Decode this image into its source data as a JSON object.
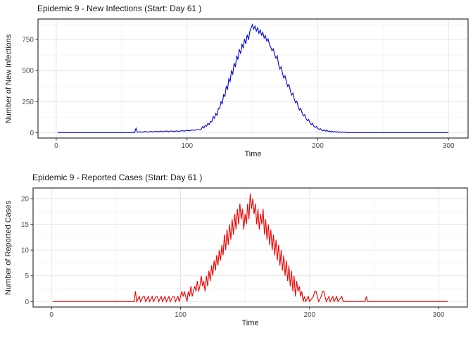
{
  "theme": {
    "background": "#ffffff",
    "panel_border": "#333333",
    "grid_major": "#e6e6e6",
    "grid_minor": "#f2f2f2",
    "tick_mark_color": "#333333",
    "tick_label_color": "#4d4d4d",
    "title_color": "#1a1a1a",
    "blue_series": "#0000de",
    "red_series": "#ee0000"
  },
  "chart_data": [
    {
      "type": "line",
      "title": "Epidemic 9 - New Infections (Start: Day 61 )",
      "xlabel": "Time",
      "ylabel": "Number of New Infections",
      "legend": "none",
      "grid": true,
      "line_color": "#0000de",
      "xlim": [
        1,
        300
      ],
      "ylim": [
        0,
        872
      ],
      "x_ticks": [
        0,
        100,
        200,
        300
      ],
      "x_minor_ticks": [
        50,
        150,
        250
      ],
      "y_ticks": [
        0,
        250,
        500,
        750
      ],
      "y_minor_ticks": [
        125,
        375,
        625,
        875
      ],
      "points": [
        [
          1,
          0
        ],
        [
          58,
          0
        ],
        [
          60,
          1
        ],
        [
          61,
          35
        ],
        [
          62,
          3
        ],
        [
          64,
          7
        ],
        [
          66,
          3
        ],
        [
          68,
          9
        ],
        [
          70,
          4
        ],
        [
          72,
          10
        ],
        [
          74,
          5
        ],
        [
          76,
          11
        ],
        [
          78,
          6
        ],
        [
          80,
          12
        ],
        [
          82,
          7
        ],
        [
          84,
          13
        ],
        [
          86,
          8
        ],
        [
          88,
          13
        ],
        [
          90,
          9
        ],
        [
          92,
          14
        ],
        [
          94,
          10
        ],
        [
          96,
          16
        ],
        [
          98,
          12
        ],
        [
          100,
          18
        ],
        [
          102,
          15
        ],
        [
          104,
          21
        ],
        [
          106,
          18
        ],
        [
          108,
          25
        ],
        [
          110,
          22
        ],
        [
          111,
          30
        ],
        [
          112,
          50
        ],
        [
          113,
          38
        ],
        [
          114,
          58
        ],
        [
          115,
          52
        ],
        [
          116,
          76
        ],
        [
          117,
          64
        ],
        [
          118,
          90
        ],
        [
          119,
          88
        ],
        [
          120,
          130
        ],
        [
          121,
          115
        ],
        [
          122,
          155
        ],
        [
          123,
          140
        ],
        [
          124,
          196
        ],
        [
          125,
          195
        ],
        [
          126,
          250
        ],
        [
          127,
          232
        ],
        [
          128,
          305
        ],
        [
          129,
          292
        ],
        [
          130,
          372
        ],
        [
          131,
          350
        ],
        [
          132,
          435
        ],
        [
          133,
          412
        ],
        [
          134,
          498
        ],
        [
          135,
          472
        ],
        [
          136,
          560
        ],
        [
          137,
          530
        ],
        [
          138,
          620
        ],
        [
          139,
          588
        ],
        [
          140,
          672
        ],
        [
          141,
          635
        ],
        [
          142,
          716
        ],
        [
          143,
          680
        ],
        [
          144,
          755
        ],
        [
          145,
          715
        ],
        [
          146,
          790
        ],
        [
          147,
          748
        ],
        [
          148,
          815
        ],
        [
          149,
          842
        ],
        [
          150,
          870
        ],
        [
          151,
          835
        ],
        [
          152,
          858
        ],
        [
          153,
          818
        ],
        [
          154,
          845
        ],
        [
          155,
          800
        ],
        [
          156,
          828
        ],
        [
          157,
          785
        ],
        [
          158,
          808
        ],
        [
          159,
          762
        ],
        [
          160,
          782
        ],
        [
          161,
          738
        ],
        [
          162,
          755
        ],
        [
          163,
          712
        ],
        [
          164,
          690
        ],
        [
          165,
          660
        ],
        [
          166,
          676
        ],
        [
          167,
          628
        ],
        [
          168,
          600
        ],
        [
          169,
          618
        ],
        [
          170,
          552
        ],
        [
          171,
          512
        ],
        [
          172,
          530
        ],
        [
          173,
          478
        ],
        [
          174,
          440
        ],
        [
          175,
          458
        ],
        [
          176,
          408
        ],
        [
          177,
          372
        ],
        [
          178,
          388
        ],
        [
          179,
          340
        ],
        [
          180,
          302
        ],
        [
          181,
          318
        ],
        [
          182,
          272
        ],
        [
          183,
          240
        ],
        [
          184,
          254
        ],
        [
          185,
          210
        ],
        [
          186,
          182
        ],
        [
          187,
          195
        ],
        [
          188,
          158
        ],
        [
          189,
          134
        ],
        [
          190,
          145
        ],
        [
          191,
          115
        ],
        [
          192,
          96
        ],
        [
          193,
          106
        ],
        [
          194,
          80
        ],
        [
          195,
          64
        ],
        [
          196,
          74
        ],
        [
          197,
          52
        ],
        [
          198,
          42
        ],
        [
          199,
          50
        ],
        [
          200,
          34
        ],
        [
          201,
          26
        ],
        [
          202,
          32
        ],
        [
          203,
          20
        ],
        [
          204,
          15
        ],
        [
          205,
          22
        ],
        [
          206,
          12
        ],
        [
          207,
          18
        ],
        [
          208,
          9
        ],
        [
          209,
          14
        ],
        [
          210,
          6
        ],
        [
          211,
          12
        ],
        [
          212,
          4
        ],
        [
          213,
          9
        ],
        [
          214,
          3
        ],
        [
          215,
          8
        ],
        [
          216,
          2
        ],
        [
          217,
          6
        ],
        [
          218,
          1
        ],
        [
          219,
          5
        ],
        [
          220,
          1
        ],
        [
          221,
          4
        ],
        [
          222,
          0
        ],
        [
          230,
          0
        ],
        [
          300,
          0
        ]
      ]
    },
    {
      "type": "line",
      "title": "Epidemic 9 - Reported Cases (Start: Day 61 )",
      "xlabel": "Time",
      "ylabel": "Number of Reported Cases",
      "legend": "none",
      "grid": true,
      "line_color": "#ee0000",
      "xlim": [
        1,
        307
      ],
      "ylim": [
        0,
        21
      ],
      "x_ticks": [
        0,
        100,
        200,
        300
      ],
      "x_minor_ticks": [
        50,
        150,
        250
      ],
      "y_ticks": [
        0,
        5,
        10,
        15,
        20
      ],
      "y_minor_ticks": [
        2.5,
        7.5,
        12.5,
        17.5
      ],
      "points": [
        [
          1,
          0
        ],
        [
          64,
          0
        ],
        [
          65,
          2
        ],
        [
          66,
          0
        ],
        [
          68,
          1
        ],
        [
          69,
          0
        ],
        [
          71,
          1
        ],
        [
          72,
          1
        ],
        [
          73,
          0
        ],
        [
          75,
          1
        ],
        [
          76,
          0
        ],
        [
          78,
          1
        ],
        [
          79,
          0
        ],
        [
          81,
          1
        ],
        [
          82,
          1
        ],
        [
          83,
          0
        ],
        [
          85,
          1
        ],
        [
          86,
          0
        ],
        [
          88,
          1
        ],
        [
          89,
          0
        ],
        [
          91,
          1
        ],
        [
          92,
          0
        ],
        [
          94,
          1
        ],
        [
          95,
          1
        ],
        [
          96,
          0
        ],
        [
          98,
          1
        ],
        [
          99,
          0
        ],
        [
          100,
          1
        ],
        [
          101,
          2
        ],
        [
          102,
          1
        ],
        [
          103,
          2
        ],
        [
          104,
          1
        ],
        [
          105,
          0
        ],
        [
          106,
          2
        ],
        [
          107,
          1
        ],
        [
          108,
          3
        ],
        [
          109,
          1
        ],
        [
          110,
          2
        ],
        [
          111,
          3
        ],
        [
          112,
          2
        ],
        [
          113,
          4
        ],
        [
          114,
          2
        ],
        [
          115,
          3
        ],
        [
          116,
          5
        ],
        [
          117,
          3
        ],
        [
          118,
          4
        ],
        [
          119,
          2
        ],
        [
          120,
          5
        ],
        [
          121,
          3
        ],
        [
          122,
          6
        ],
        [
          123,
          4
        ],
        [
          124,
          7
        ],
        [
          125,
          5
        ],
        [
          126,
          8
        ],
        [
          127,
          6
        ],
        [
          128,
          9
        ],
        [
          129,
          7
        ],
        [
          130,
          10
        ],
        [
          131,
          8
        ],
        [
          132,
          11
        ],
        [
          133,
          9
        ],
        [
          134,
          13
        ],
        [
          135,
          10
        ],
        [
          136,
          14
        ],
        [
          137,
          11
        ],
        [
          138,
          15
        ],
        [
          139,
          12
        ],
        [
          140,
          16
        ],
        [
          141,
          13
        ],
        [
          142,
          17
        ],
        [
          143,
          14
        ],
        [
          144,
          18
        ],
        [
          145,
          15
        ],
        [
          146,
          19
        ],
        [
          147,
          16
        ],
        [
          148,
          18
        ],
        [
          149,
          14
        ],
        [
          150,
          17
        ],
        [
          151,
          15
        ],
        [
          152,
          19
        ],
        [
          153,
          16
        ],
        [
          154,
          21
        ],
        [
          155,
          18
        ],
        [
          156,
          20
        ],
        [
          157,
          17
        ],
        [
          158,
          19
        ],
        [
          159,
          15
        ],
        [
          160,
          18
        ],
        [
          161,
          14
        ],
        [
          162,
          17
        ],
        [
          163,
          15
        ],
        [
          164,
          18
        ],
        [
          165,
          13
        ],
        [
          166,
          16
        ],
        [
          167,
          12
        ],
        [
          168,
          15
        ],
        [
          169,
          11
        ],
        [
          170,
          14
        ],
        [
          171,
          10
        ],
        [
          172,
          13
        ],
        [
          173,
          9
        ],
        [
          174,
          12
        ],
        [
          175,
          8
        ],
        [
          176,
          11
        ],
        [
          177,
          7
        ],
        [
          178,
          10
        ],
        [
          179,
          6
        ],
        [
          180,
          9
        ],
        [
          181,
          5
        ],
        [
          182,
          8
        ],
        [
          183,
          4
        ],
        [
          184,
          7
        ],
        [
          185,
          3
        ],
        [
          186,
          6
        ],
        [
          187,
          2
        ],
        [
          188,
          5
        ],
        [
          189,
          1
        ],
        [
          190,
          4
        ],
        [
          191,
          2
        ],
        [
          192,
          3
        ],
        [
          193,
          1
        ],
        [
          194,
          2
        ],
        [
          195,
          0
        ],
        [
          196,
          1
        ],
        [
          197,
          0
        ],
        [
          199,
          1
        ],
        [
          200,
          0
        ],
        [
          203,
          1
        ],
        [
          204,
          2
        ],
        [
          205,
          2
        ],
        [
          206,
          1
        ],
        [
          207,
          0
        ],
        [
          209,
          1
        ],
        [
          210,
          2
        ],
        [
          211,
          2
        ],
        [
          212,
          1
        ],
        [
          213,
          0
        ],
        [
          215,
          1
        ],
        [
          216,
          0
        ],
        [
          218,
          1
        ],
        [
          219,
          0
        ],
        [
          221,
          1
        ],
        [
          222,
          0
        ],
        [
          225,
          1
        ],
        [
          226,
          0
        ],
        [
          229,
          0
        ],
        [
          243,
          0
        ],
        [
          244,
          1
        ],
        [
          245,
          0
        ],
        [
          307,
          0
        ]
      ]
    }
  ]
}
